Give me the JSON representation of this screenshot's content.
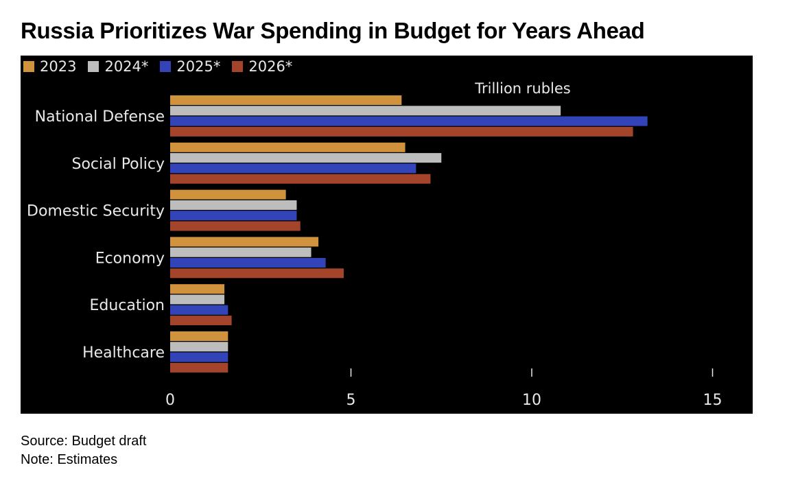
{
  "title": "Russia Prioritizes War Spending in Budget for Years Ahead",
  "footer": {
    "source": "Source: Budget draft",
    "note": "Note: Estimates"
  },
  "colors": {
    "background": "#000000",
    "text": "#e9e9e9",
    "series": [
      "#d0923d",
      "#bdbdbd",
      "#3344b8",
      "#a4442a"
    ]
  },
  "chart_data": {
    "type": "bar",
    "orientation": "horizontal",
    "title": "Russia Prioritizes War Spending in Budget for Years Ahead",
    "unit_label": "Trillion rubles",
    "xlabel": "",
    "ylabel": "",
    "categories": [
      "National Defense",
      "Social Policy",
      "Domestic Security",
      "Economy",
      "Education",
      "Healthcare"
    ],
    "series": [
      {
        "name": "2023",
        "values": [
          6.4,
          6.5,
          3.2,
          4.1,
          1.5,
          1.6
        ]
      },
      {
        "name": "2024*",
        "values": [
          10.8,
          7.5,
          3.5,
          3.9,
          1.5,
          1.6
        ]
      },
      {
        "name": "2025*",
        "values": [
          13.2,
          6.8,
          3.5,
          4.3,
          1.6,
          1.6
        ]
      },
      {
        "name": "2026*",
        "values": [
          12.8,
          7.2,
          3.6,
          4.8,
          1.7,
          1.6
        ]
      }
    ],
    "xlim": [
      0,
      15
    ],
    "xticks": [
      "0",
      "5",
      "10",
      "15"
    ],
    "grid": false,
    "legend_position": "top-left"
  }
}
